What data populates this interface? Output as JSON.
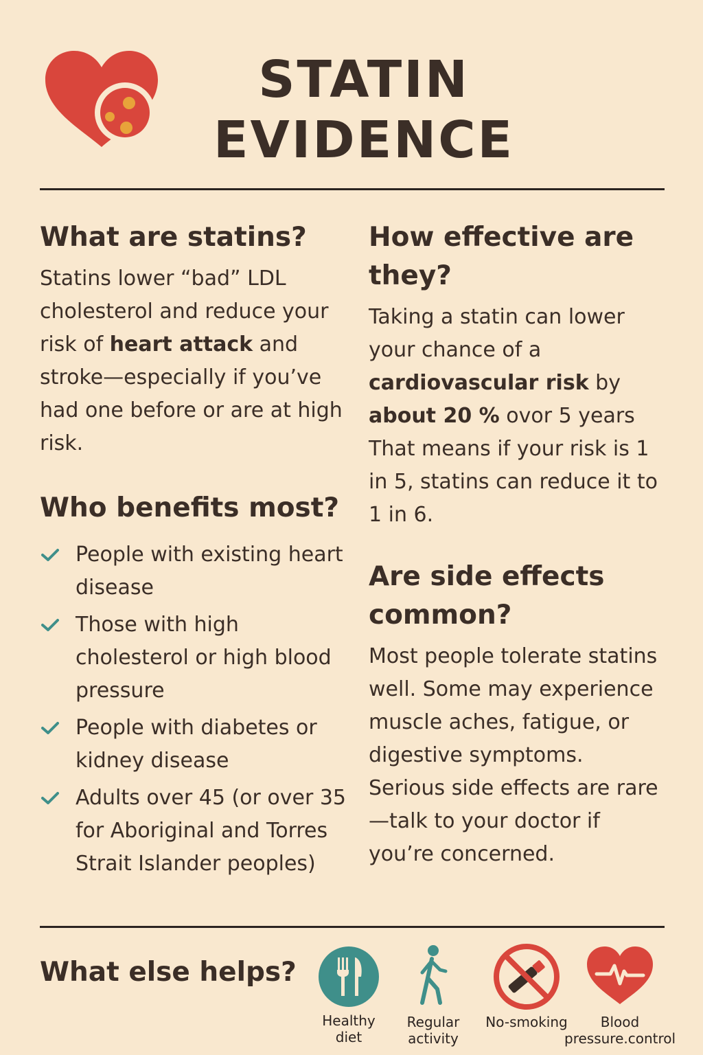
{
  "header": {
    "title_line1": "STATIN",
    "title_line2": "EVIDENCE"
  },
  "sections": {
    "what_are": {
      "heading": "What are statins?",
      "text_1": "Statins lower “bad” LDL cholesterol and reduce your risk of ",
      "bold_1": "heart attack",
      "text_2": " and stroke—especially if you’ve had one before or are at high risk."
    },
    "who_benefits": {
      "heading": "Who benefits most?",
      "items": [
        "People with existing heart disease",
        "Those with high cholesterol or high blood pressure",
        "People with diabetes or kidney disease",
        "Adults over 45 (or over 35 for Aboriginal and Torres Strait Islander peoples)"
      ]
    },
    "effective": {
      "heading": "How effective are they?",
      "text_1": "Taking a statin can lower your chance of a ",
      "bold_1": "cardiovascular risk",
      "text_2": " by ",
      "bold_2": "about 20 %",
      "text_3": " ovor 5 years That means if your risk is 1 in 5, statins can reduce it to 1 in 6."
    },
    "side_effects": {
      "heading": "Are side effects common?",
      "text": "Most people tolerate statins well. Some may experience muscle aches, fatigue, or digestive symptoms. Serious side effects are rare—talk to your doctor if you’re concerned."
    }
  },
  "footer": {
    "heading": "What else helps?",
    "items": [
      {
        "label": "Healthy diet",
        "icon": "fork-knife-icon"
      },
      {
        "label": "Regular activity",
        "icon": "walking-person-icon"
      },
      {
        "label": "No-smoking",
        "icon": "no-smoking-icon"
      },
      {
        "label": "Blood pressure.control",
        "icon": "heart-pulse-icon"
      }
    ]
  },
  "colors": {
    "background": "#f9e8cf",
    "text": "#3b2e27",
    "heart_red": "#d9463c",
    "accent_orange": "#e8a33a",
    "teal": "#3f8f8a"
  }
}
